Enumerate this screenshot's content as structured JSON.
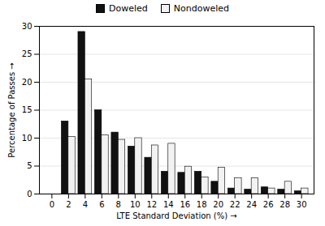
{
  "chart_data": {
    "type": "bar",
    "x": [
      0,
      2,
      4,
      6,
      8,
      10,
      12,
      14,
      16,
      18,
      20,
      22,
      24,
      26,
      28,
      30
    ],
    "series": [
      {
        "name": "Doweled",
        "color": "#111111",
        "values": [
          0,
          13,
          29,
          15,
          11,
          8.5,
          6.5,
          4,
          3.8,
          4,
          2.2,
          1,
          0.8,
          1.2,
          0.8,
          0.5
        ]
      },
      {
        "name": "Nondoweled",
        "color": "#f2f2f2",
        "values": [
          0,
          10.2,
          20.5,
          10.5,
          9.7,
          10,
          8.7,
          9,
          4.9,
          3,
          4.7,
          2.8,
          2.8,
          1,
          2.2,
          1
        ]
      }
    ],
    "xlabel": "LTE Standard Deviation (%)",
    "ylabel": "Percentage of Passes",
    "xlim": [
      -1.5,
      31.5
    ],
    "xticks": [
      0,
      2,
      4,
      6,
      8,
      10,
      12,
      14,
      16,
      18,
      20,
      22,
      24,
      26,
      28,
      30
    ],
    "ylim": [
      0,
      30
    ],
    "yticks": [
      0,
      5,
      10,
      15,
      20,
      25,
      30
    ],
    "grid": true,
    "legend": "top"
  }
}
